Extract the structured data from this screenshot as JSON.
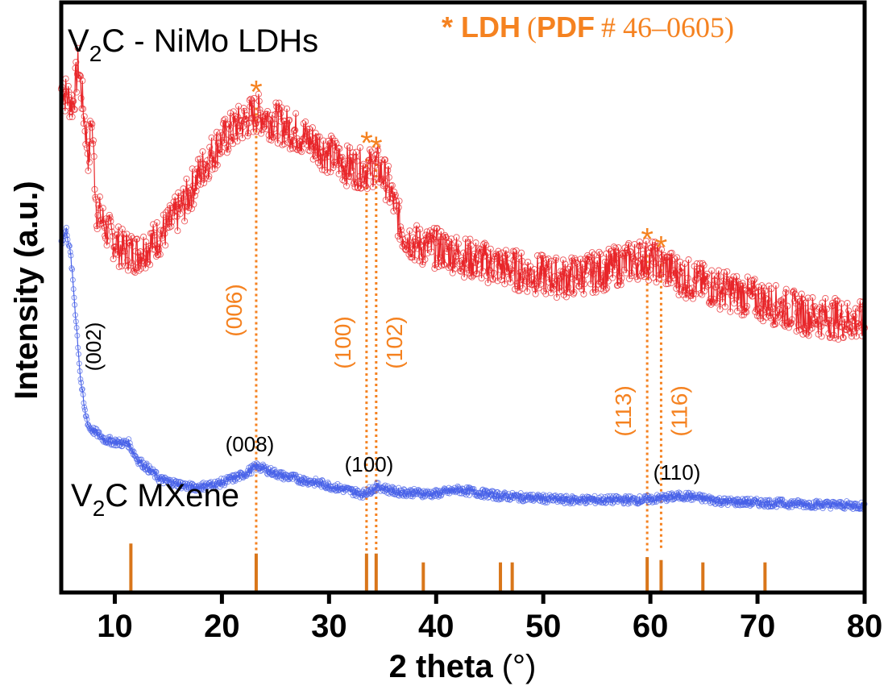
{
  "chart_data": {
    "type": "line",
    "title": "",
    "xlabel": "2 theta (°)",
    "ylabel": "Intensity (a.u.)",
    "xlim": [
      5,
      80
    ],
    "ylim": [
      0,
      100
    ],
    "xticks": [
      10,
      20,
      30,
      40,
      50,
      60,
      70,
      80
    ],
    "grid": false,
    "colors": {
      "ldh_series": "#e8262a",
      "mxene_series": "#4a63e8",
      "reference": "#f58220",
      "reference_stick": "#d9761a",
      "axis": "#000000"
    },
    "series": [
      {
        "name": "V2C - NiMo LDHs",
        "label_main": "V",
        "label_sub": "2",
        "label_rest": "C - NiMo LDHs",
        "marker": "open-circle",
        "x": [
          5.0,
          6.1,
          6.6,
          7.6,
          7.8,
          8.3,
          9.4,
          10.6,
          12.1,
          13.6,
          15.1,
          16.6,
          18.1,
          19.6,
          21.1,
          23.2,
          24.9,
          27.1,
          29.4,
          31.6,
          33.5,
          34.5,
          35.4,
          36.9,
          38.4,
          40.7,
          42.9,
          45.9,
          48.9,
          51.9,
          55.7,
          59.2,
          60.5,
          63.2,
          67.0,
          70.8,
          74.5,
          80.0
        ],
        "y": [
          85.4,
          82.8,
          89.6,
          73.1,
          81.3,
          65.0,
          60.9,
          58.2,
          57.5,
          59.4,
          62.2,
          66.3,
          71.7,
          75.8,
          78.6,
          81.3,
          79.9,
          77.9,
          75.1,
          72.4,
          71.7,
          72.4,
          69.7,
          60.9,
          58.7,
          58.2,
          56.7,
          55.3,
          54.0,
          53.3,
          54.6,
          56.7,
          56.0,
          53.3,
          51.2,
          49.2,
          47.1,
          45.8
        ]
      },
      {
        "name": "V2C MXene",
        "label_main": "V",
        "label_sub": "2",
        "label_rest": "C MXene",
        "marker": "open-circle",
        "x": [
          5.0,
          5.5,
          5.9,
          6.4,
          6.8,
          7.2,
          7.6,
          9.1,
          10.6,
          11.3,
          12.1,
          14.3,
          17.3,
          19.6,
          21.8,
          23.3,
          25.6,
          29.4,
          33.1,
          34.6,
          36.1,
          39.8,
          42.1,
          45.8,
          51.9,
          59.4,
          63.2,
          66.9,
          74.5,
          80.0
        ],
        "y": [
          59.4,
          61.5,
          56.7,
          45.8,
          36.3,
          30.7,
          28.0,
          25.9,
          25.3,
          25.3,
          22.6,
          19.1,
          17.8,
          18.4,
          19.8,
          21.4,
          19.8,
          18.4,
          16.7,
          18.0,
          17.1,
          16.7,
          17.4,
          16.4,
          15.7,
          15.7,
          16.4,
          15.4,
          15.0,
          14.7
        ]
      }
    ],
    "reference_pattern": {
      "legend_star": "*",
      "legend_bold": "LDH",
      "legend_paren_open": "(",
      "legend_pdf": "PDF",
      "legend_number": "# 46–0605)",
      "sticks": [
        {
          "x": 11.5,
          "h": 8.3
        },
        {
          "x": 23.2,
          "h": 6.6
        },
        {
          "x": 33.5,
          "h": 6.6
        },
        {
          "x": 34.4,
          "h": 6.6
        },
        {
          "x": 38.8,
          "h": 5.1
        },
        {
          "x": 46.0,
          "h": 5.1
        },
        {
          "x": 47.1,
          "h": 5.1
        },
        {
          "x": 59.7,
          "h": 6.0
        },
        {
          "x": 61.0,
          "h": 5.5
        },
        {
          "x": 64.9,
          "h": 5.1
        },
        {
          "x": 70.7,
          "h": 5.1
        }
      ]
    },
    "ldh_peaks": [
      {
        "x": 23.2,
        "hkl": "(006)",
        "star_y": 86.0
      },
      {
        "x": 33.5,
        "hkl": "(100)",
        "star_y": 77.3
      },
      {
        "x": 34.4,
        "hkl": "(102)",
        "star_y": 76.5
      },
      {
        "x": 59.7,
        "hkl": "(113)",
        "star_y": 61.0
      },
      {
        "x": 61.0,
        "hkl": "(116)",
        "star_y": 59.6
      }
    ],
    "mxene_peaks": [
      {
        "x": 7.2,
        "hkl": "(002)"
      },
      {
        "x": 23.3,
        "hkl": "(008)"
      },
      {
        "x": 34.6,
        "hkl": "(100)"
      },
      {
        "x": 63.2,
        "hkl": "(110)"
      }
    ],
    "xlabel_main": "2 theta ",
    "xlabel_unit": "(°)"
  }
}
